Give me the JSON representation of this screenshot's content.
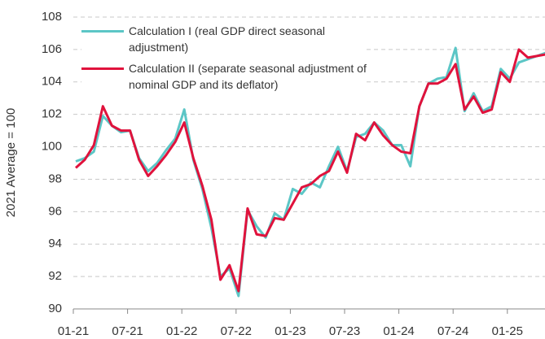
{
  "chart_data": {
    "type": "line",
    "y_label": "2021 Average = 100",
    "categories": [
      "01-21",
      null,
      null,
      null,
      null,
      null,
      "07-21",
      null,
      null,
      null,
      null,
      null,
      "01-22",
      null,
      null,
      null,
      null,
      null,
      "07-22",
      null,
      null,
      null,
      null,
      null,
      "01-23",
      null,
      null,
      null,
      null,
      null,
      "07-23",
      null,
      null,
      null,
      null,
      null,
      "01-24",
      null,
      null,
      null,
      null,
      null,
      "07-24",
      null,
      null,
      null,
      null,
      null,
      "01-25",
      null,
      null,
      null,
      null
    ],
    "series": [
      {
        "name": "Calculation I (real GDP direct seasonal adjustment)",
        "color": "#5cc6c6",
        "values": [
          99.1,
          99.3,
          99.7,
          101.9,
          101.3,
          100.9,
          101.0,
          99.3,
          98.5,
          99.0,
          99.8,
          100.5,
          102.3,
          99.2,
          97.4,
          95.0,
          92.0,
          92.5,
          90.8,
          96.1,
          95.1,
          94.4,
          95.9,
          95.5,
          97.4,
          97.1,
          97.8,
          97.5,
          98.8,
          100.0,
          98.5,
          100.6,
          100.8,
          101.5,
          101.0,
          100.1,
          100.1,
          98.8,
          102.5,
          103.9,
          104.2,
          104.3,
          106.1,
          102.2,
          103.3,
          102.2,
          102.5,
          104.8,
          104.2,
          105.2,
          105.4,
          105.6,
          105.8
        ]
      },
      {
        "name": "Calculation II (separate seasonal adjustment of nominal GDP and its deflator)",
        "color": "#e0123c",
        "values": [
          98.7,
          99.2,
          100.1,
          102.5,
          101.3,
          101.0,
          101.0,
          99.2,
          98.2,
          98.8,
          99.5,
          100.3,
          101.5,
          99.3,
          97.6,
          95.5,
          91.8,
          92.7,
          91.1,
          96.2,
          94.6,
          94.5,
          95.6,
          95.5,
          96.5,
          97.5,
          97.7,
          98.2,
          98.5,
          99.7,
          98.4,
          100.8,
          100.4,
          101.5,
          100.7,
          100.1,
          99.7,
          99.6,
          102.5,
          103.9,
          103.9,
          104.2,
          105.1,
          102.3,
          103.1,
          102.1,
          102.3,
          104.6,
          104.0,
          106.0,
          105.5,
          105.6,
          105.7
        ]
      }
    ],
    "ylim": [
      90,
      108
    ],
    "yticks": [
      90,
      92,
      94,
      96,
      98,
      100,
      102,
      104,
      106,
      108
    ],
    "grid": true
  }
}
